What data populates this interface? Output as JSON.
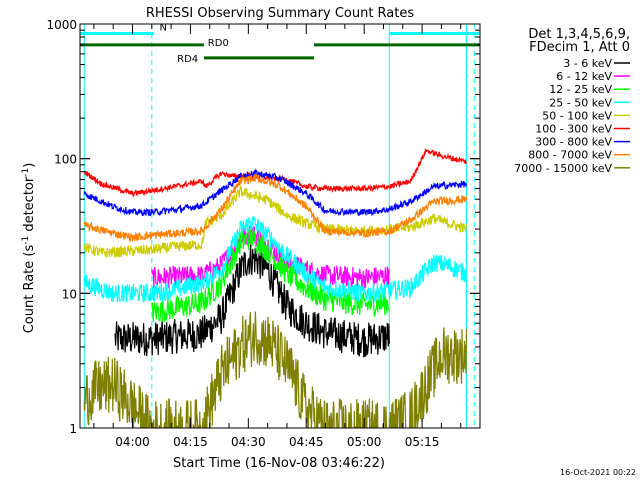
{
  "chart_data": {
    "type": "line",
    "title": "RHESSI Observing Summary Count Rates",
    "xlabel": "Start Time (16-Nov-08 03:46:22)",
    "ylabel": "Count Rate (s",
    "ylabel_sup1": "-1",
    "ylabel_mid": " detector",
    "ylabel_sup2": "-1",
    "ylabel_end": ")",
    "y_scale": "log",
    "ylim": [
      1,
      1000
    ],
    "xlim_minutes": [
      226.4,
      330.0
    ],
    "x_ticks": [
      {
        "label": "04:00",
        "t": 240
      },
      {
        "label": "04:15",
        "t": 255
      },
      {
        "label": "04:30",
        "t": 270
      },
      {
        "label": "04:45",
        "t": 285
      },
      {
        "label": "05:00",
        "t": 300
      },
      {
        "label": "05:15",
        "t": 315
      }
    ],
    "y_ticks": [
      {
        "label": "1000",
        "v": 1000
      },
      {
        "label": "100",
        "v": 100
      },
      {
        "label": "10",
        "v": 10
      },
      {
        "label": "1",
        "v": 1
      }
    ],
    "legend_header": [
      "Det 1,3,4,5,6,9,",
      "FDecim 1, Att 0"
    ],
    "legend_position": "right",
    "footer_date": "16-Oct-2021 00:22",
    "flags": [
      {
        "label": "N",
        "color": "#00ffff",
        "level": 850,
        "segments": [
          [
            226.4,
            245.5
          ],
          [
            306.5,
            330.0
          ]
        ]
      },
      {
        "label": "RD0",
        "color": "#006400",
        "level": 700,
        "segments": [
          [
            226.4,
            258.5
          ],
          [
            287.0,
            330.0
          ]
        ]
      },
      {
        "label": "RD4",
        "color": "#006400",
        "level": 560,
        "segments": [
          [
            258.5,
            287.0
          ]
        ]
      }
    ],
    "night_boundaries": [
      227.5,
      306.5,
      326.5
    ],
    "saa_boundaries": [
      245.0,
      328.5
    ],
    "series": [
      {
        "name": "3 - 6 keV",
        "color": "#000000",
        "t": [
          235.5,
          244.5,
          245.0,
          258.0,
          263.0,
          268.0,
          270.0,
          272.0,
          275.0,
          280.0,
          285.0,
          290.0,
          300.0,
          306.5
        ],
        "v": [
          4.6,
          4.6,
          4.6,
          5.0,
          6.6,
          15.0,
          18.0,
          18.0,
          15.0,
          8.0,
          6.0,
          5.1,
          4.5,
          4.8
        ],
        "noise": 0.13
      },
      {
        "name": "6 - 12 keV",
        "color": "#ff00ff",
        "t": [
          245.0,
          258.0,
          263.0,
          268.0,
          271.0,
          275.0,
          280.0,
          285.0,
          290.0,
          300.0,
          306.5
        ],
        "v": [
          13.0,
          13.5,
          16.0,
          26.0,
          28.0,
          23.0,
          17.0,
          15.0,
          13.5,
          13.0,
          13.5
        ],
        "noise": 0.08
      },
      {
        "name": "12 - 25 keV",
        "color": "#00ff00",
        "t": [
          245.0,
          258.0,
          263.0,
          268.0,
          271.0,
          275.0,
          280.0,
          285.0,
          290.0,
          300.0,
          306.5
        ],
        "v": [
          7.2,
          8.5,
          12.0,
          24.0,
          26.0,
          21.0,
          14.0,
          11.0,
          9.0,
          8.2,
          8.5
        ],
        "noise": 0.09
      },
      {
        "name": "25 - 50 keV",
        "color": "#00ffff",
        "t": [
          227.5,
          235.0,
          245.0,
          250.0,
          258.0,
          263.0,
          268.0,
          271.0,
          275.0,
          280.0,
          285.0,
          290.0,
          300.0,
          306.5,
          312.0,
          318.0,
          322.0,
          326.5
        ],
        "v": [
          12.0,
          10.0,
          10.0,
          10.5,
          12.0,
          15.0,
          30.0,
          34.0,
          27.0,
          19.0,
          14.0,
          11.0,
          10.0,
          10.5,
          11.0,
          17.0,
          16.0,
          14.0
        ],
        "noise": 0.07
      },
      {
        "name": "50 - 100 keV",
        "color": "#cccc00",
        "t": [
          227.5,
          232.0,
          245.0,
          250.0,
          258.0,
          259.0,
          263.0,
          268.0,
          275.0,
          280.0,
          285.0,
          290.0,
          300.0,
          306.5,
          312.0,
          318.0,
          326.5
        ],
        "v": [
          22.0,
          20.0,
          21.0,
          22.0,
          23.0,
          33.0,
          38.0,
          57.0,
          49.0,
          38.0,
          33.0,
          30.0,
          29.0,
          30.0,
          31.0,
          36.0,
          30.0
        ],
        "noise": 0.04
      },
      {
        "name": "100 - 300 keV",
        "color": "#ff0000",
        "t": [
          227.5,
          232.0,
          240.0,
          245.0,
          252.0,
          258.0,
          259.0,
          263.0,
          266.0,
          270.0,
          275.0,
          280.0,
          285.0,
          290.0,
          300.0,
          306.5,
          312.0,
          316.0,
          320.0,
          326.5
        ],
        "v": [
          80.0,
          65.0,
          55.0,
          58.0,
          63.0,
          68.0,
          62.0,
          78.0,
          74.0,
          75.0,
          72.0,
          70.0,
          62.0,
          60.0,
          60.0,
          62.0,
          68.0,
          115.0,
          105.0,
          95.0
        ],
        "noise": 0.02
      },
      {
        "name": "300 - 800 keV",
        "color": "#0000ff",
        "t": [
          227.5,
          235.0,
          240.0,
          245.0,
          252.0,
          258.0,
          263.0,
          268.0,
          272.0,
          278.0,
          285.0,
          290.0,
          300.0,
          306.5,
          312.0,
          318.0,
          326.5
        ],
        "v": [
          55.0,
          44.0,
          40.0,
          40.0,
          42.0,
          45.0,
          58.0,
          74.0,
          78.0,
          72.0,
          55.0,
          41.0,
          40.0,
          42.0,
          48.0,
          62.0,
          65.0
        ],
        "noise": 0.025
      },
      {
        "name": "800 - 7000 keV",
        "color": "#ff7f00",
        "t": [
          227.5,
          235.0,
          240.0,
          245.0,
          252.0,
          258.0,
          263.0,
          268.0,
          272.0,
          278.0,
          285.0,
          290.0,
          300.0,
          306.5,
          312.0,
          318.0,
          326.5
        ],
        "v": [
          32.0,
          28.0,
          26.0,
          27.0,
          28.0,
          29.0,
          42.0,
          68.0,
          72.0,
          63.0,
          44.0,
          29.0,
          28.0,
          29.0,
          35.0,
          48.0,
          50.0
        ],
        "noise": 0.03
      },
      {
        "name": "7000 - 15000 keV",
        "color": "#808000",
        "t": [
          227.5,
          230.0,
          235.0,
          245.0,
          258.0,
          263.0,
          268.0,
          272.0,
          276.0,
          281.0,
          285.0,
          290.0,
          300.0,
          306.5,
          312.0,
          320.0,
          326.5
        ],
        "v": [
          1.6,
          1.9,
          2.1,
          1.0,
          1.0,
          2.5,
          4.0,
          5.0,
          4.2,
          2.6,
          1.4,
          1.0,
          1.0,
          1.0,
          1.2,
          3.5,
          3.5
        ],
        "noise": 0.22
      }
    ]
  }
}
